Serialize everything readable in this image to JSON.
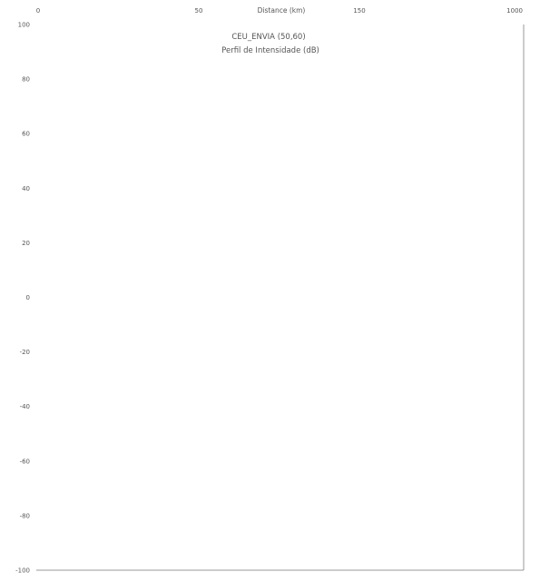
{
  "chart_data": {
    "type": "scatter",
    "title": "",
    "xlabel": "Distance (km)",
    "ylabel": "",
    "x_ticks": [
      "0",
      "50",
      "100",
      "150",
      "1000"
    ],
    "y_ticks": [
      "100",
      "80",
      "60",
      "40",
      "20",
      "0",
      "-20",
      "-40",
      "-60",
      "-80",
      "-100"
    ],
    "ylim": [
      -100,
      100
    ],
    "grid": false,
    "legend": "none",
    "series": [],
    "annotations": [
      {
        "text": "CEU_ENVIA (50,60)"
      },
      {
        "text": "Perfil de Intensidade (dB)"
      }
    ]
  }
}
